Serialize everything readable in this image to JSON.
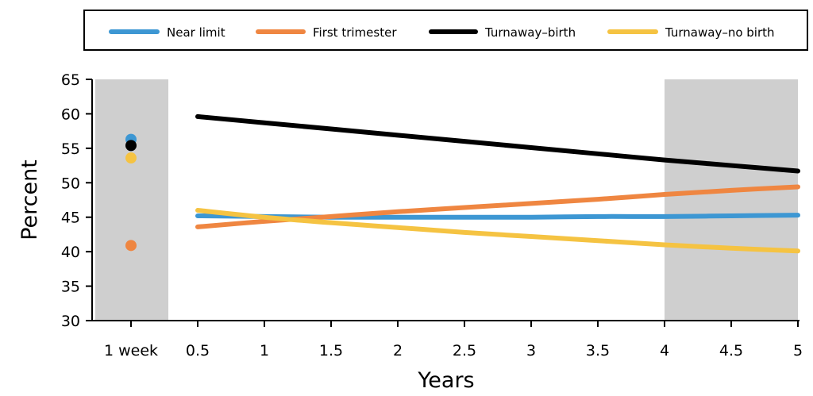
{
  "chart_data": {
    "type": "line",
    "xlabel": "Years",
    "ylabel": "Percent",
    "ylim": [
      30,
      65
    ],
    "y_ticks": [
      30,
      35,
      40,
      45,
      50,
      55,
      60,
      65
    ],
    "x_ticks": [
      {
        "label": "1 week",
        "value": -0.0
      },
      {
        "label": "0.5",
        "value": 0.5
      },
      {
        "label": "1",
        "value": 1
      },
      {
        "label": "1.5",
        "value": 1.5
      },
      {
        "label": "2",
        "value": 2
      },
      {
        "label": "2.5",
        "value": 2.5
      },
      {
        "label": "3",
        "value": 3
      },
      {
        "label": "3.5",
        "value": 3.5
      },
      {
        "label": "4",
        "value": 4
      },
      {
        "label": "4.5",
        "value": 4.5
      },
      {
        "label": "5",
        "value": 5
      }
    ],
    "shaded_regions": [
      {
        "from": "1 week",
        "to": 0.28
      },
      {
        "from": 4,
        "to": 5
      }
    ],
    "legend_position": "top",
    "series": [
      {
        "name": "Near limit",
        "color": "#3d97d3",
        "one_week": 56.3,
        "x": [
          0.5,
          1,
          1.5,
          2,
          2.5,
          3,
          3.5,
          4,
          4.5,
          5
        ],
        "values": [
          45.2,
          45.1,
          45.0,
          45.0,
          45.0,
          45.0,
          45.1,
          45.1,
          45.2,
          45.3
        ]
      },
      {
        "name": "First trimester",
        "color": "#ef8641",
        "one_week": 40.9,
        "x": [
          0.5,
          1,
          1.5,
          2,
          2.5,
          3,
          3.5,
          4,
          4.5,
          5
        ],
        "values": [
          43.6,
          44.4,
          45.1,
          45.8,
          46.4,
          47.0,
          47.6,
          48.3,
          48.9,
          49.4
        ]
      },
      {
        "name": "Turnaway–birth",
        "color": "#000000",
        "one_week": 55.4,
        "x": [
          0.5,
          1,
          1.5,
          2,
          2.5,
          3,
          3.5,
          4,
          4.5,
          5
        ],
        "values": [
          59.6,
          58.7,
          57.8,
          56.9,
          56.0,
          55.1,
          54.2,
          53.3,
          52.5,
          51.7
        ]
      },
      {
        "name": "Turnaway–no birth",
        "color": "#f5c342",
        "one_week": 53.6,
        "x": [
          0.5,
          1,
          1.5,
          2,
          2.5,
          3,
          3.5,
          4,
          4.5,
          5
        ],
        "values": [
          46.0,
          45.0,
          44.2,
          43.5,
          42.8,
          42.2,
          41.6,
          41.0,
          40.5,
          40.1
        ]
      }
    ]
  }
}
